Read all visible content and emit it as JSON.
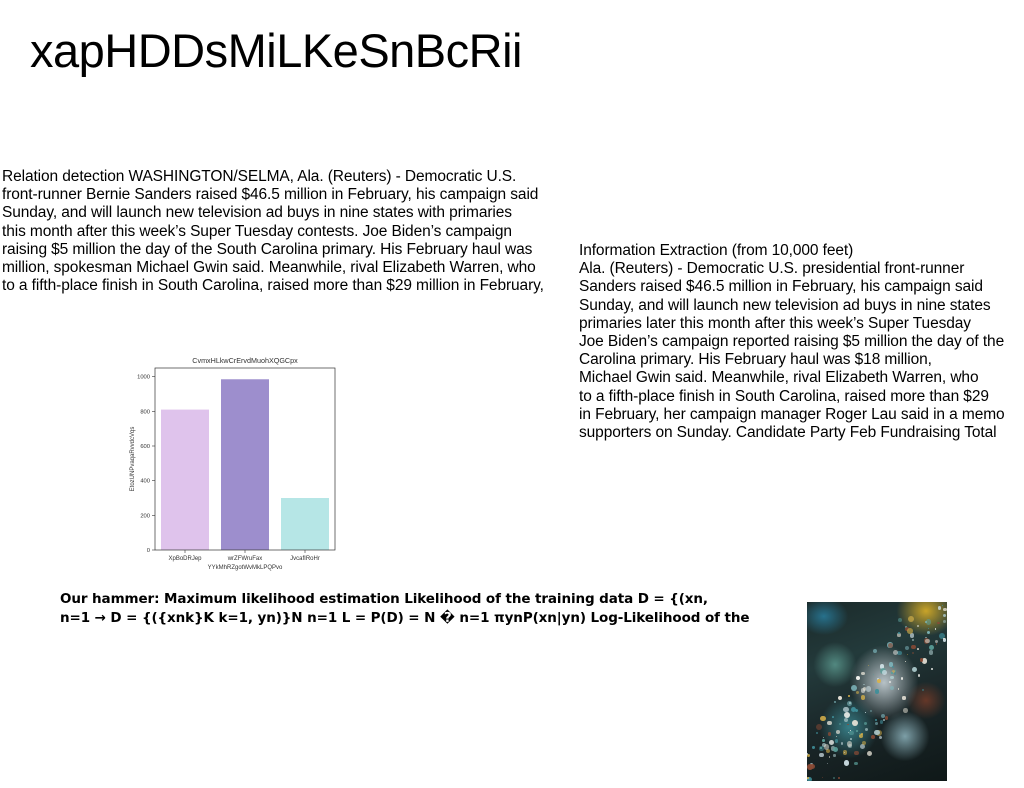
{
  "page": {
    "title": "xapHDDsMiLKeSnBcRii"
  },
  "left_text": {
    "lines": [
      "Relation detection WASHINGTON/SELMA, Ala. (Reuters) - Democratic U.S.",
      "front-runner Bernie Sanders raised $46.5 million in February, his campaign said",
      "Sunday, and will launch new television ad buys in nine states with primaries",
      "this month after this week’s Super Tuesday contests. Joe Biden’s campaign",
      "raising $5 million the day of the South Carolina primary. His February haul was",
      "million, spokesman Michael Gwin said. Meanwhile, rival Elizabeth Warren, who",
      "to a fifth-place finish in South Carolina, raised more than $29 million in February,"
    ]
  },
  "right_text": {
    "lines": [
      "Information Extraction (from 10,000 feet)",
      "Ala. (Reuters) - Democratic U.S. presidential front-runner",
      "Sanders raised $46.5 million in February, his campaign said",
      "Sunday, and will launch new television ad buys in nine states",
      "primaries later this month after this week’s Super Tuesday",
      "Joe Biden’s campaign reported raising $5 million the day of the",
      "Carolina primary. His February haul was $18 million,",
      "Michael Gwin said. Meanwhile, rival Elizabeth Warren, who",
      "to a fifth-place finish in South Carolina, raised more than $29",
      "in February, her campaign manager Roger Lau said in a memo",
      "supporters on Sunday. Candidate Party Feb Fundraising Total"
    ]
  },
  "bold_text": {
    "lines": [
      "Our hammer: Maximum likelihood estimation Likelihood of the training data D = {(xn,",
      "n=1 → D = {({xnk}K k=1, yn)}N n=1 L = P(D) = N � n=1 πynP(xn|yn) Log-Likelihood of the"
    ]
  },
  "chart_data": {
    "type": "bar",
    "title": "CvmxHLkwCrErvdMuohXQGCpx",
    "xlabel": "YYkMhRZgotWvMkLPQPvo",
    "ylabel": "EtozUNPvaqaRvvdcVqs",
    "categories": [
      "XpBoDRJep",
      "wrZFWruFax",
      "JvcafIRoHr"
    ],
    "values": [
      810,
      985,
      300
    ],
    "colors": [
      "#dfc3ec",
      "#9d8ecd",
      "#b6e6e6"
    ],
    "ylim": [
      0,
      1050
    ],
    "yticks": [
      0,
      200,
      400,
      600,
      800,
      1000
    ],
    "grid": false,
    "legend": "none"
  },
  "image": {
    "icon": "fractal-image"
  }
}
